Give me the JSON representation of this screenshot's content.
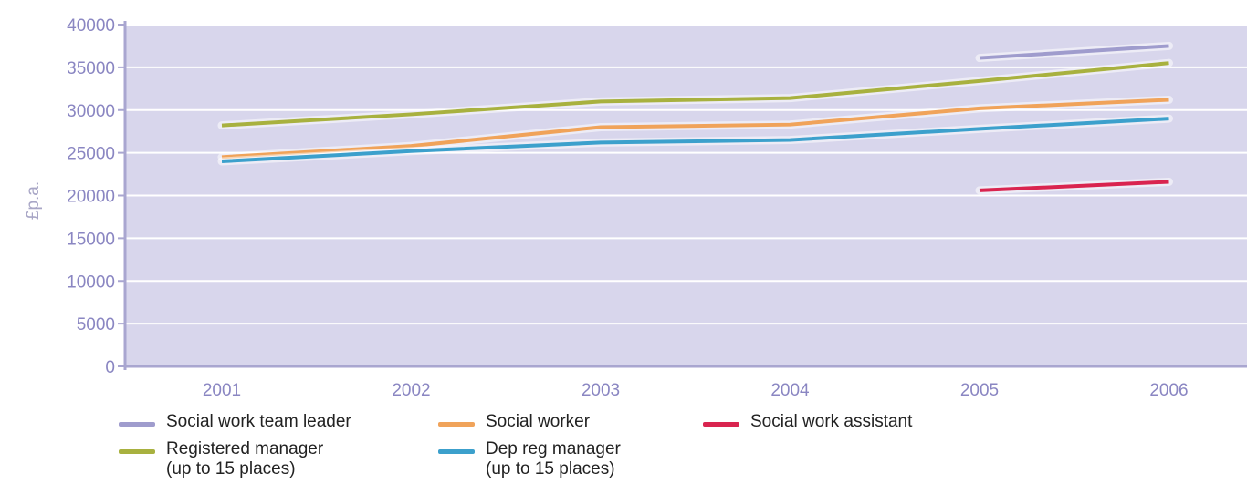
{
  "chart_data": {
    "type": "line",
    "title": "",
    "xlabel": "",
    "ylabel": "£p.a.",
    "categories": [
      "2001",
      "2002",
      "2003",
      "2004",
      "2005",
      "2006"
    ],
    "ylim": [
      0,
      40000
    ],
    "yticks": [
      "0",
      "5000",
      "10000",
      "15000",
      "20000",
      "25000",
      "30000",
      "35000",
      "40000"
    ],
    "grid": true,
    "legend_position": "bottom",
    "series": [
      {
        "name": "Social work team leader",
        "color": "#9f9ccd",
        "values": [
          null,
          null,
          null,
          null,
          36100,
          37500
        ]
      },
      {
        "name": "Social worker",
        "color": "#f0a35a",
        "values": [
          24500,
          25800,
          28000,
          28300,
          30200,
          31200
        ]
      },
      {
        "name": "Social work assistant",
        "color": "#d9244f",
        "values": [
          null,
          null,
          null,
          null,
          20600,
          21600
        ]
      },
      {
        "name": "Registered manager\n(up to 15 places)",
        "color": "#a8b13f",
        "values": [
          28200,
          29500,
          31000,
          31400,
          33400,
          35500
        ]
      },
      {
        "name": "Dep reg manager\n(up to 15 places)",
        "color": "#3ca0cc",
        "values": [
          24000,
          25200,
          26200,
          26500,
          27800,
          29000
        ]
      }
    ]
  },
  "legend": {
    "items": [
      {
        "lines": [
          "Social work team leader"
        ],
        "color": "#9f9ccd"
      },
      {
        "lines": [
          "Social worker"
        ],
        "color": "#f0a35a"
      },
      {
        "lines": [
          "Social work assistant"
        ],
        "color": "#d9244f"
      },
      {
        "lines": [
          "Registered manager",
          "(up to 15 places)"
        ],
        "color": "#a8b13f"
      },
      {
        "lines": [
          "Dep reg manager",
          "(up to 15 places)"
        ],
        "color": "#3ca0cc"
      }
    ]
  },
  "colors": {
    "plot_background": "#d8d6ec",
    "gridline": "#ffffff",
    "axis": "#a9a6d0",
    "tick_text": "#8a86c2"
  }
}
